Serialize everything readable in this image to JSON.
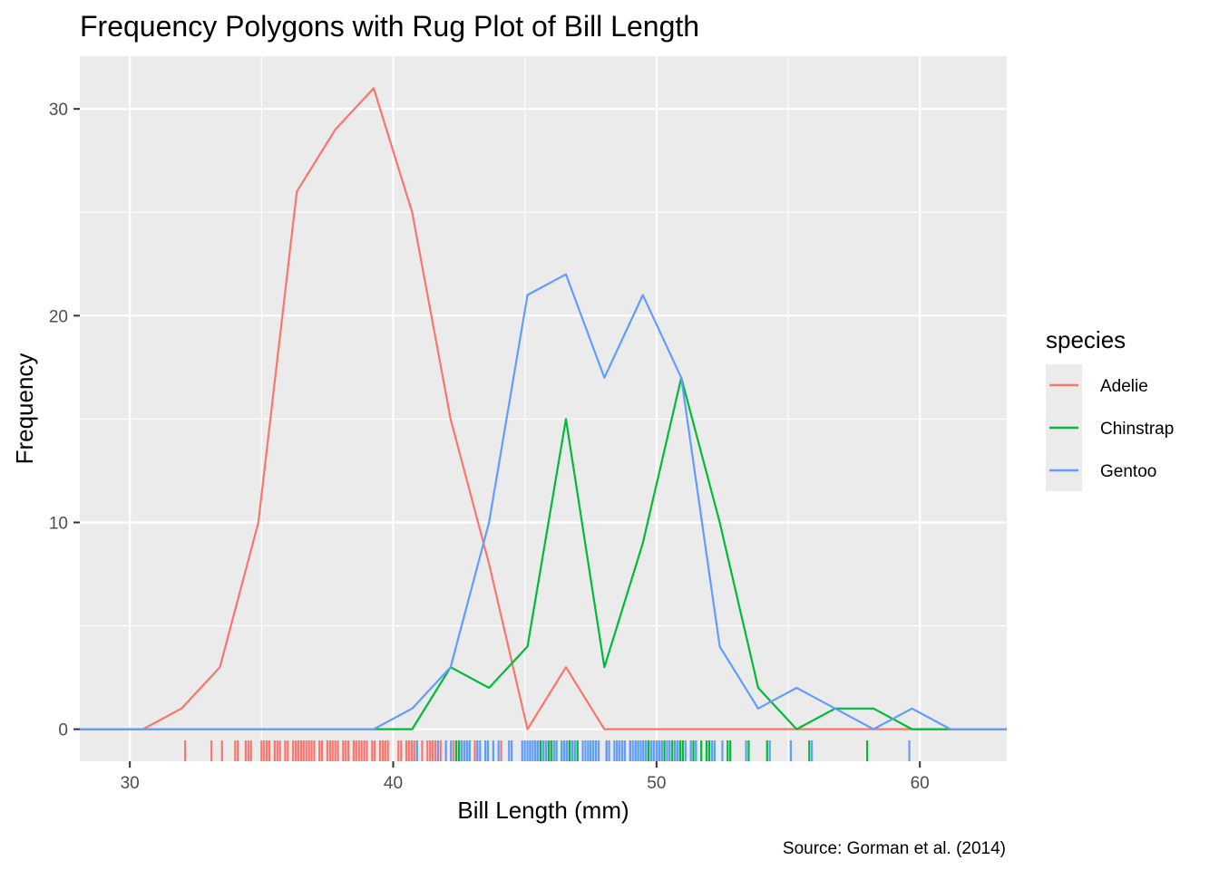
{
  "chart_data": {
    "type": "line",
    "title": "Frequency Polygons with Rug Plot of Bill Length",
    "xlabel": "Bill Length (mm)",
    "ylabel": "Frequency",
    "caption": "Source: Gorman et al. (2014)",
    "xlim": [
      28.1,
      63.3
    ],
    "ylim": [
      -1.55,
      32.55
    ],
    "x_ticks": [
      30,
      40,
      50,
      60
    ],
    "y_ticks": [
      0,
      10,
      20,
      30
    ],
    "grid": true,
    "legend": {
      "title": "species",
      "position": "right"
    },
    "x": [
      30.5,
      31.96,
      33.42,
      34.88,
      36.34,
      37.8,
      39.26,
      40.72,
      42.18,
      43.64,
      45.1,
      46.56,
      48.02,
      49.48,
      50.94,
      52.4,
      53.86,
      55.32,
      56.78,
      58.24,
      59.7,
      61.16
    ],
    "series": [
      {
        "name": "Adelie",
        "color": "#F8766D",
        "values": [
          0,
          1,
          3,
          10,
          26,
          29,
          31,
          25,
          15,
          8,
          0,
          3,
          0,
          0,
          0,
          0,
          0,
          0,
          0,
          0,
          0,
          0
        ]
      },
      {
        "name": "Chinstrap",
        "color": "#00BA38",
        "values": [
          0,
          0,
          0,
          0,
          0,
          0,
          0,
          0,
          3,
          2,
          4,
          15,
          3,
          9,
          17,
          10,
          2,
          0,
          1,
          1,
          0,
          0
        ]
      },
      {
        "name": "Gentoo",
        "color": "#619CFF",
        "values": [
          0,
          0,
          0,
          0,
          0,
          0,
          0,
          1,
          3,
          10,
          21,
          22,
          17,
          21,
          17,
          4,
          1,
          2,
          1,
          0,
          1,
          0
        ]
      }
    ],
    "rug": {
      "Adelie": [
        32.1,
        33.1,
        33.5,
        34.0,
        34.1,
        34.4,
        34.5,
        34.6,
        35.0,
        35.1,
        35.2,
        35.3,
        35.5,
        35.6,
        35.7,
        35.9,
        36.0,
        36.2,
        36.3,
        36.4,
        36.5,
        36.6,
        36.7,
        36.8,
        36.9,
        37.0,
        37.2,
        37.3,
        37.5,
        37.6,
        37.7,
        37.8,
        37.9,
        38.1,
        38.2,
        38.3,
        38.5,
        38.6,
        38.7,
        38.8,
        38.9,
        39.0,
        39.2,
        39.3,
        39.5,
        39.6,
        39.7,
        39.8,
        40.2,
        40.3,
        40.5,
        40.6,
        40.7,
        40.8,
        40.9,
        41.1,
        41.3,
        41.4,
        41.5,
        41.6,
        41.8,
        42.0,
        42.2,
        42.3,
        42.5,
        42.7,
        42.8,
        42.9,
        43.1,
        43.2,
        44.1,
        45.8,
        46.0
      ],
      "Chinstrap": [
        40.9,
        42.4,
        42.5,
        42.9,
        43.2,
        43.5,
        45.2,
        45.4,
        45.5,
        45.6,
        45.7,
        45.9,
        46.0,
        46.1,
        46.2,
        46.4,
        46.5,
        46.6,
        46.7,
        46.8,
        46.9,
        47.0,
        47.5,
        48.1,
        48.5,
        49.0,
        49.2,
        49.3,
        49.5,
        49.6,
        49.7,
        49.8,
        50.1,
        50.2,
        50.3,
        50.5,
        50.6,
        50.7,
        50.8,
        50.9,
        51.0,
        51.3,
        51.4,
        51.5,
        51.7,
        51.9,
        52.0,
        52.2,
        52.7,
        52.8,
        53.5,
        54.2,
        55.8,
        58.0
      ],
      "Gentoo": [
        40.9,
        41.7,
        42.0,
        42.2,
        42.6,
        42.7,
        42.8,
        42.9,
        43.2,
        43.3,
        43.5,
        43.6,
        43.8,
        44.0,
        44.4,
        44.5,
        44.9,
        45.0,
        45.1,
        45.2,
        45.3,
        45.4,
        45.5,
        45.7,
        45.8,
        46.1,
        46.2,
        46.4,
        46.5,
        46.6,
        46.8,
        46.9,
        47.2,
        47.3,
        47.4,
        47.5,
        47.6,
        47.7,
        47.8,
        48.1,
        48.2,
        48.4,
        48.5,
        48.6,
        48.7,
        48.8,
        49.0,
        49.1,
        49.2,
        49.3,
        49.4,
        49.5,
        49.6,
        49.8,
        49.9,
        50.0,
        50.1,
        50.2,
        50.4,
        50.5,
        50.7,
        50.8,
        51.1,
        51.3,
        51.5,
        52.1,
        52.2,
        52.5,
        53.4,
        54.3,
        55.1,
        55.9,
        59.6
      ]
    }
  }
}
